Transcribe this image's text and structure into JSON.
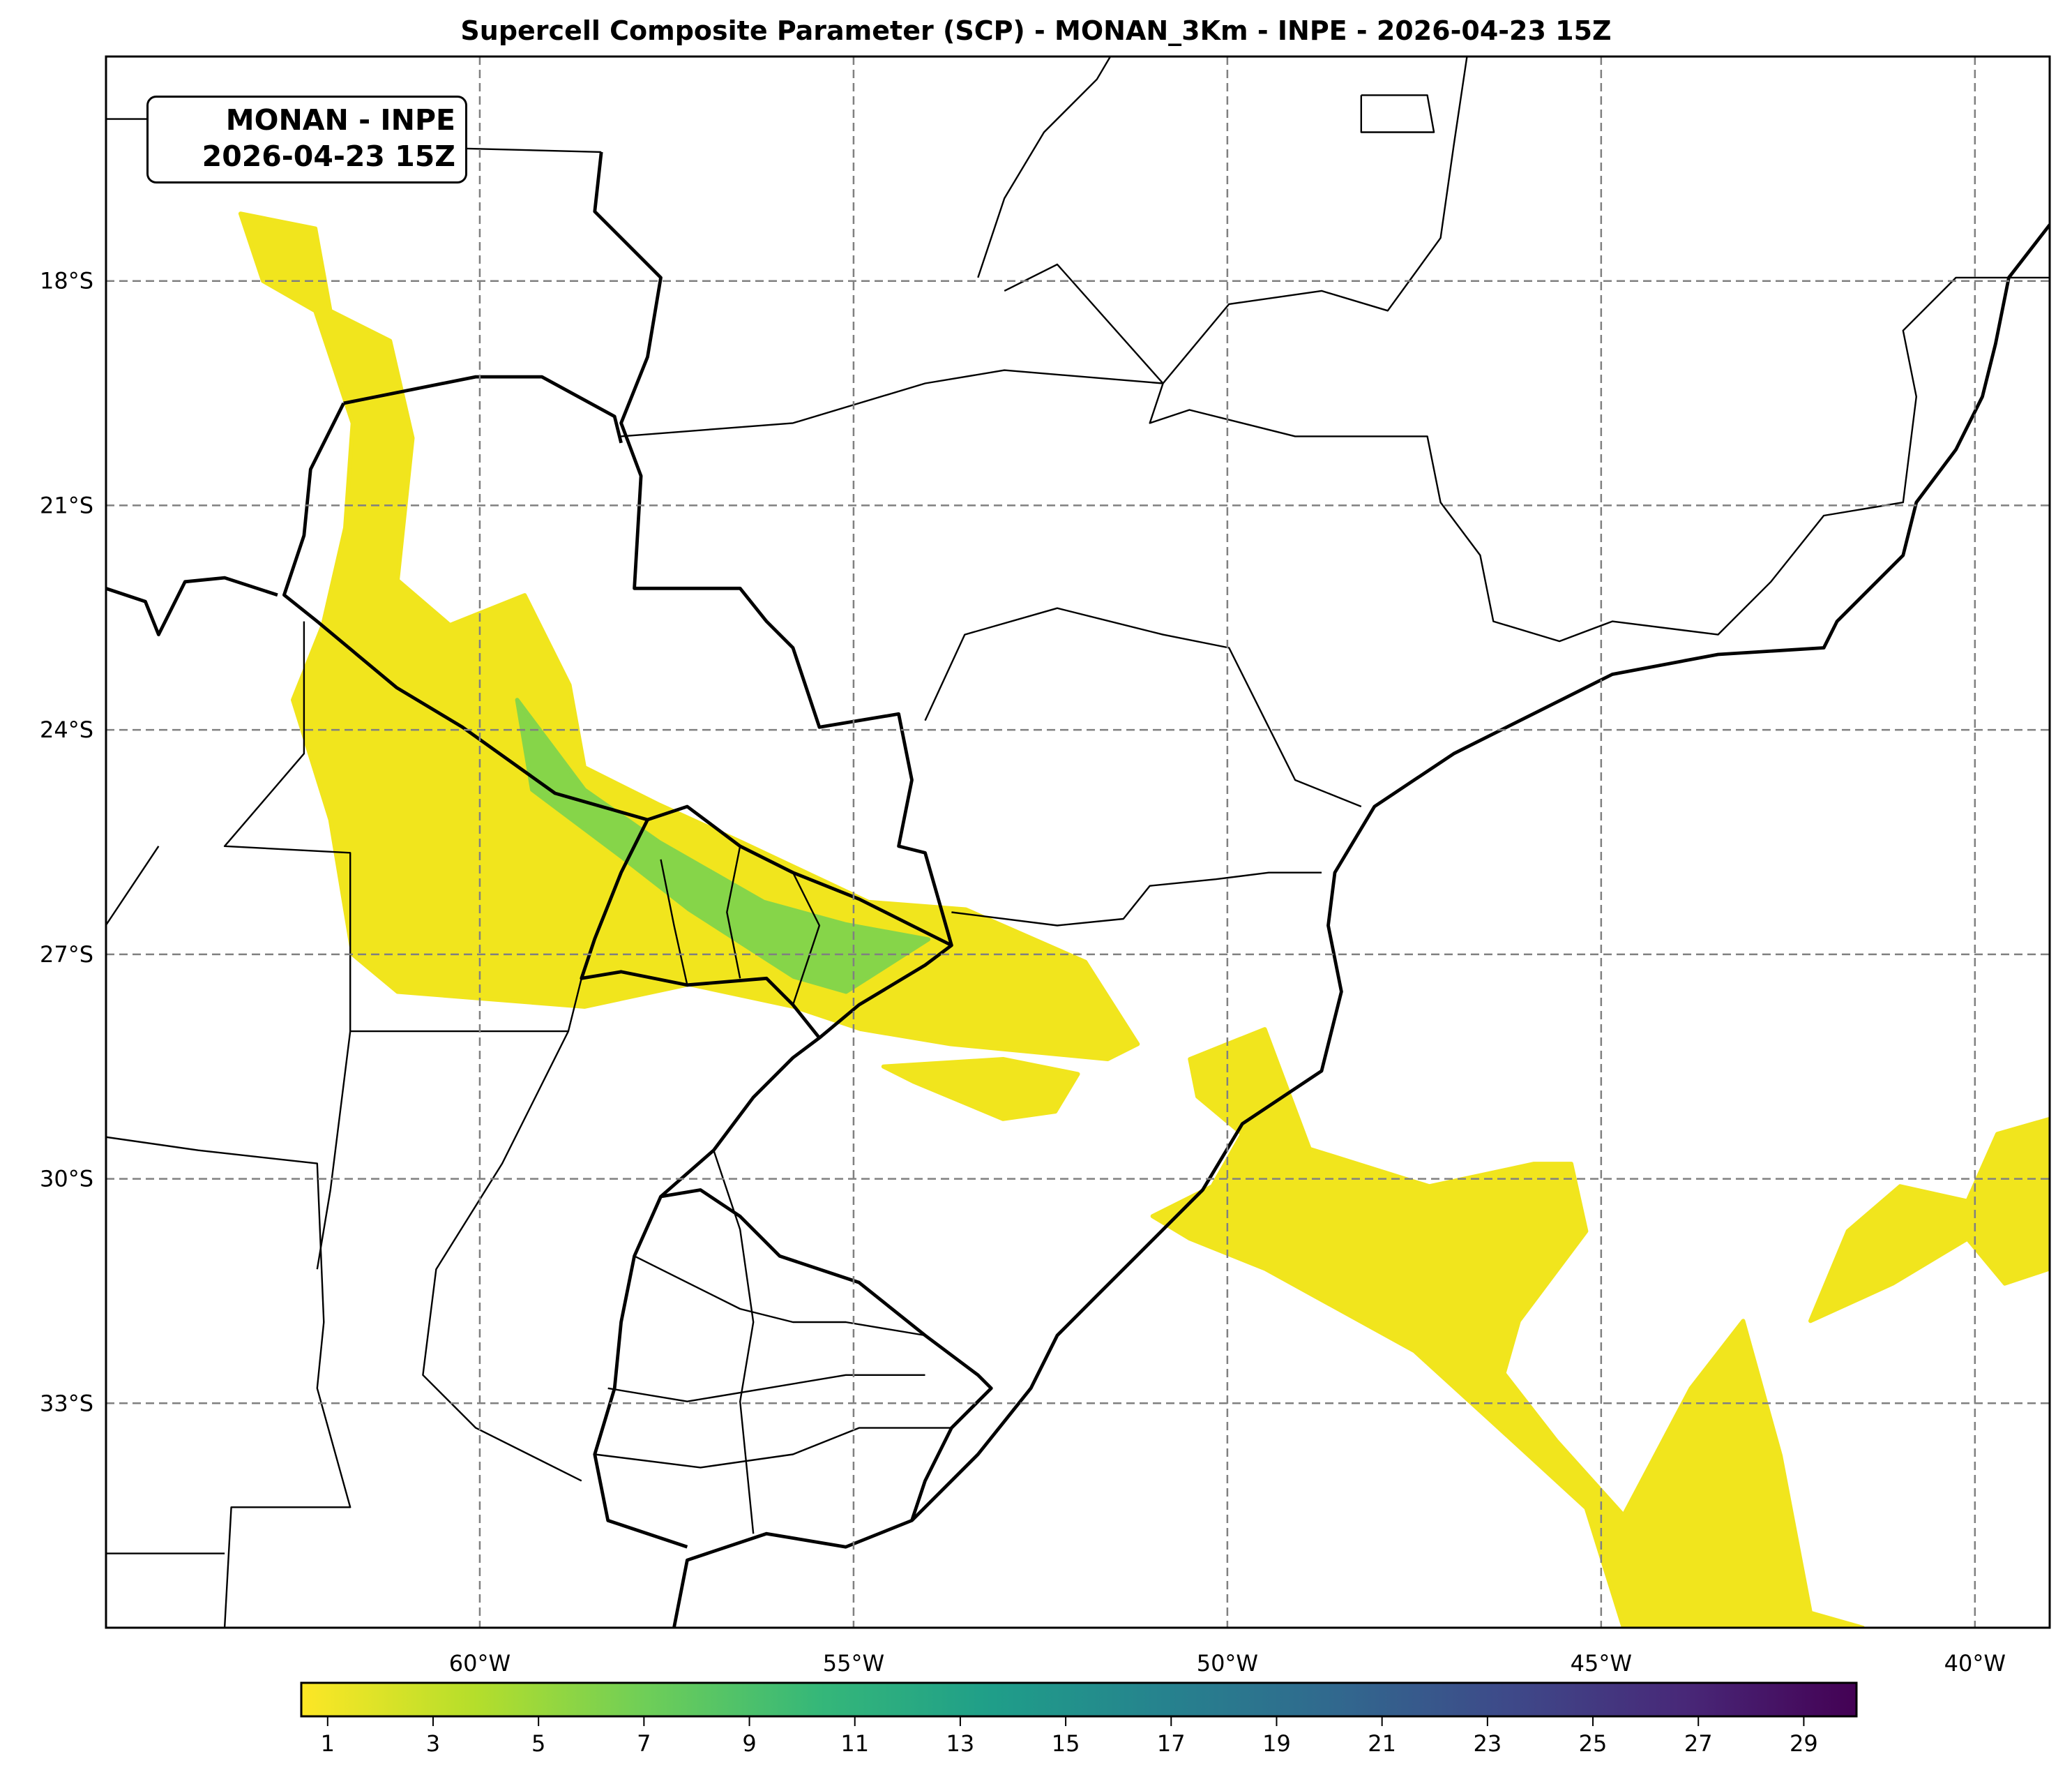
{
  "title": "Supercell Composite Parameter (SCP) - MONAN_3Km - INPE - 2026-04-23 15Z",
  "info_box": {
    "line1": "MONAN - INPE",
    "line2": "2026-04-23 15Z"
  },
  "chart_data": {
    "type": "heatmap",
    "projection": "PlateCarree",
    "extent_lon": [
      -65,
      -39
    ],
    "extent_lat": [
      -36,
      -15
    ],
    "grid": true,
    "x_ticks": [
      {
        "value": -60,
        "label": "60°W"
      },
      {
        "value": -55,
        "label": "55°W"
      },
      {
        "value": -50,
        "label": "50°W"
      },
      {
        "value": -45,
        "label": "45°W"
      },
      {
        "value": -40,
        "label": "40°W"
      }
    ],
    "y_ticks": [
      {
        "value": -18,
        "label": "18°S"
      },
      {
        "value": -21,
        "label": "21°S"
      },
      {
        "value": -24,
        "label": "24°S"
      },
      {
        "value": -27,
        "label": "27°S"
      },
      {
        "value": -30,
        "label": "30°S"
      },
      {
        "value": -33,
        "label": "33°S"
      }
    ],
    "colorbar": {
      "colormap": "viridis_r",
      "range": [
        0.5,
        30
      ],
      "ticks": [
        "1",
        "3",
        "5",
        "7",
        "9",
        "11",
        "13",
        "15",
        "17",
        "19",
        "21",
        "23",
        "25",
        "27",
        "29"
      ],
      "colors": [
        "#fde725",
        "#b5de2b",
        "#6ece58",
        "#35b779",
        "#1f9e89",
        "#26828e",
        "#31688e",
        "#3e4989",
        "#482878",
        "#440154"
      ]
    },
    "regions": [
      {
        "name": "chaco-parana-band",
        "scp": 1.5,
        "color": "#f1e51d",
        "lonlat": [
          [
            -63.2,
            -17.1
          ],
          [
            -62.2,
            -17.3
          ],
          [
            -62.0,
            -18.4
          ],
          [
            -61.2,
            -18.8
          ],
          [
            -60.9,
            -20.1
          ],
          [
            -61.1,
            -22.0
          ],
          [
            -60.4,
            -22.6
          ],
          [
            -59.4,
            -22.2
          ],
          [
            -58.8,
            -23.4
          ],
          [
            -58.6,
            -24.5
          ],
          [
            -57.6,
            -25.0
          ],
          [
            -56.5,
            -25.5
          ],
          [
            -54.8,
            -26.3
          ],
          [
            -53.5,
            -26.4
          ],
          [
            -51.9,
            -27.1
          ],
          [
            -51.2,
            -28.2
          ],
          [
            -51.6,
            -28.4
          ],
          [
            -53.7,
            -28.2
          ],
          [
            -54.9,
            -28.0
          ],
          [
            -55.8,
            -27.7
          ],
          [
            -57.2,
            -27.4
          ],
          [
            -58.6,
            -27.7
          ],
          [
            -61.1,
            -27.5
          ],
          [
            -61.7,
            -27.0
          ],
          [
            -62.0,
            -25.2
          ],
          [
            -62.5,
            -23.6
          ],
          [
            -62.1,
            -22.6
          ],
          [
            -61.8,
            -21.3
          ],
          [
            -61.7,
            -19.9
          ],
          [
            -62.2,
            -18.4
          ],
          [
            -62.9,
            -18.0
          ]
        ]
      },
      {
        "name": "misiones-core",
        "scp": 6,
        "color": "#86d549",
        "lonlat": [
          [
            -59.5,
            -23.6
          ],
          [
            -58.6,
            -24.8
          ],
          [
            -57.6,
            -25.5
          ],
          [
            -56.2,
            -26.3
          ],
          [
            -55.1,
            -26.6
          ],
          [
            -54.0,
            -26.8
          ],
          [
            -55.1,
            -27.5
          ],
          [
            -55.8,
            -27.3
          ],
          [
            -57.2,
            -26.4
          ],
          [
            -58.1,
            -25.7
          ],
          [
            -59.3,
            -24.8
          ]
        ]
      },
      {
        "name": "rs-north",
        "scp": 1.5,
        "color": "#f1e51d",
        "lonlat": [
          [
            -54.6,
            -28.5
          ],
          [
            -53.0,
            -28.4
          ],
          [
            -52.0,
            -28.6
          ],
          [
            -52.3,
            -29.1
          ],
          [
            -53.0,
            -29.2
          ],
          [
            -54.2,
            -28.7
          ]
        ]
      },
      {
        "name": "atlantic-band",
        "scp": 1.5,
        "color": "#f1e51d",
        "lonlat": [
          [
            -50.5,
            -28.4
          ],
          [
            -49.5,
            -28.0
          ],
          [
            -48.9,
            -29.6
          ],
          [
            -47.3,
            -30.1
          ],
          [
            -45.9,
            -29.8
          ],
          [
            -45.4,
            -29.8
          ],
          [
            -45.2,
            -30.7
          ],
          [
            -46.1,
            -31.9
          ],
          [
            -46.3,
            -32.6
          ],
          [
            -45.6,
            -33.5
          ],
          [
            -44.7,
            -34.5
          ],
          [
            -43.8,
            -32.8
          ],
          [
            -43.1,
            -31.9
          ],
          [
            -42.6,
            -33.7
          ],
          [
            -42.2,
            -35.8
          ],
          [
            -41.5,
            -36.0
          ],
          [
            -44.7,
            -36.0
          ],
          [
            -45.2,
            -34.4
          ],
          [
            -46.4,
            -33.3
          ],
          [
            -47.5,
            -32.3
          ],
          [
            -49.5,
            -31.2
          ],
          [
            -50.5,
            -30.8
          ],
          [
            -51.0,
            -30.5
          ],
          [
            -50.2,
            -30.1
          ],
          [
            -49.8,
            -29.4
          ],
          [
            -50.4,
            -28.9
          ]
        ]
      },
      {
        "name": "atlantic-east",
        "scp": 1.5,
        "color": "#f1e51d",
        "lonlat": [
          [
            -41.7,
            -30.7
          ],
          [
            -41.0,
            -30.1
          ],
          [
            -40.1,
            -30.3
          ],
          [
            -39.7,
            -29.4
          ],
          [
            -39.0,
            -29.2
          ],
          [
            -39.0,
            -31.2
          ],
          [
            -39.6,
            -31.4
          ],
          [
            -40.1,
            -30.8
          ],
          [
            -41.1,
            -31.4
          ],
          [
            -42.2,
            -31.9
          ]
        ]
      }
    ]
  }
}
